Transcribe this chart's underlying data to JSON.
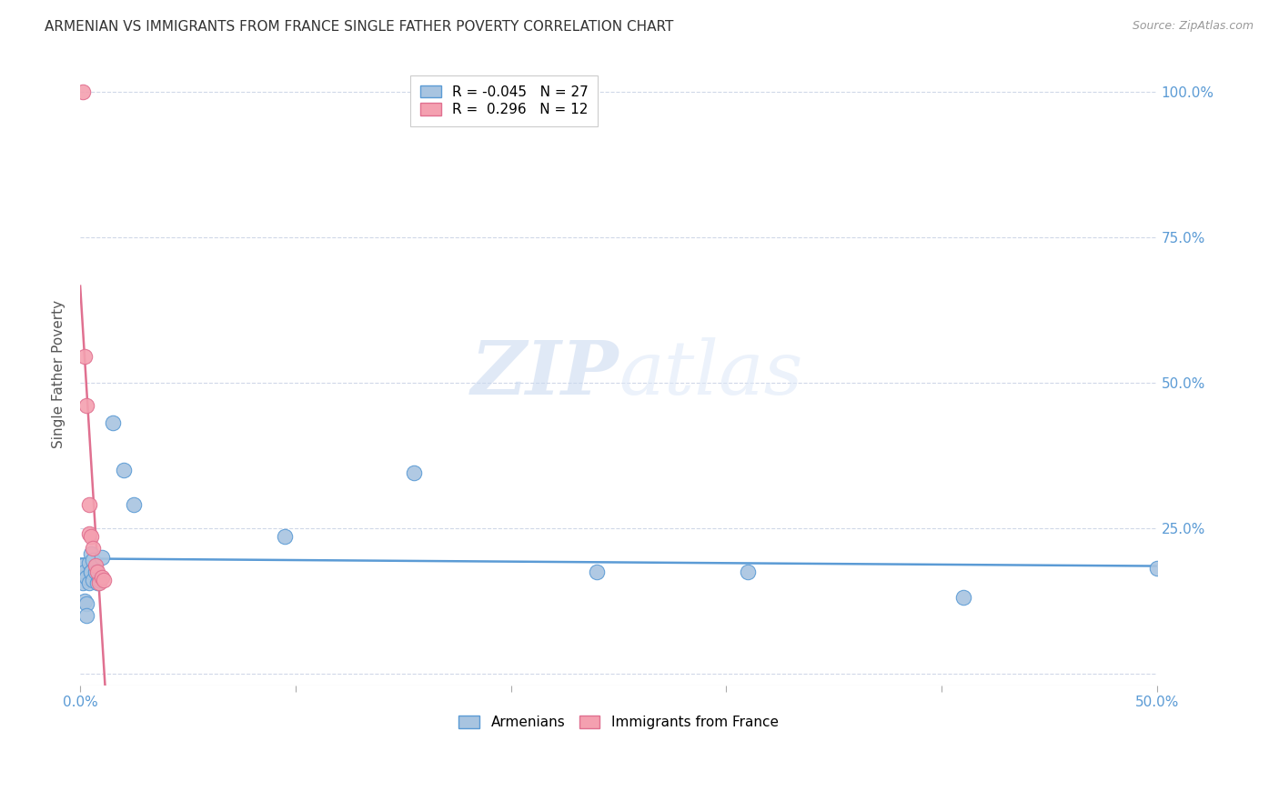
{
  "title": "ARMENIAN VS IMMIGRANTS FROM FRANCE SINGLE FATHER POVERTY CORRELATION CHART",
  "source": "Source: ZipAtlas.com",
  "ylabel": "Single Father Poverty",
  "xlim": [
    0.0,
    0.5
  ],
  "ylim": [
    -0.02,
    1.05
  ],
  "armenians_x": [
    0.001,
    0.001,
    0.002,
    0.002,
    0.003,
    0.003,
    0.003,
    0.004,
    0.004,
    0.005,
    0.005,
    0.005,
    0.006,
    0.006,
    0.007,
    0.008,
    0.009,
    0.01,
    0.015,
    0.02,
    0.025,
    0.095,
    0.155,
    0.24,
    0.31,
    0.41,
    0.5
  ],
  "armenians_y": [
    0.185,
    0.155,
    0.175,
    0.125,
    0.165,
    0.12,
    0.1,
    0.19,
    0.155,
    0.175,
    0.205,
    0.175,
    0.195,
    0.16,
    0.175,
    0.155,
    0.16,
    0.2,
    0.43,
    0.35,
    0.29,
    0.235,
    0.345,
    0.175,
    0.175,
    0.13,
    0.18
  ],
  "france_x": [
    0.001,
    0.002,
    0.003,
    0.004,
    0.004,
    0.005,
    0.006,
    0.007,
    0.008,
    0.009,
    0.01,
    0.011
  ],
  "france_y": [
    1.0,
    0.545,
    0.46,
    0.29,
    0.24,
    0.235,
    0.215,
    0.185,
    0.175,
    0.155,
    0.165,
    0.16
  ],
  "armenians_scatter_color": "#a8c4e0",
  "armenians_scatter_edge": "#5b9bd5",
  "france_scatter_color": "#f4a0b0",
  "france_scatter_edge": "#e07090",
  "armenians_trend_color": "#5b9bd5",
  "france_trend_color": "#e07090",
  "france_dashed_color": "#f0b0ba",
  "diag_color": "#e0c0c8",
  "R_armenians": -0.045,
  "N_armenians": 27,
  "R_france": 0.296,
  "N_france": 12,
  "watermark_zip": "ZIP",
  "watermark_atlas": "atlas",
  "yticks": [
    0.0,
    0.25,
    0.5,
    0.75,
    1.0
  ],
  "yticklabels_right": [
    "",
    "25.0%",
    "50.0%",
    "75.0%",
    "100.0%"
  ]
}
